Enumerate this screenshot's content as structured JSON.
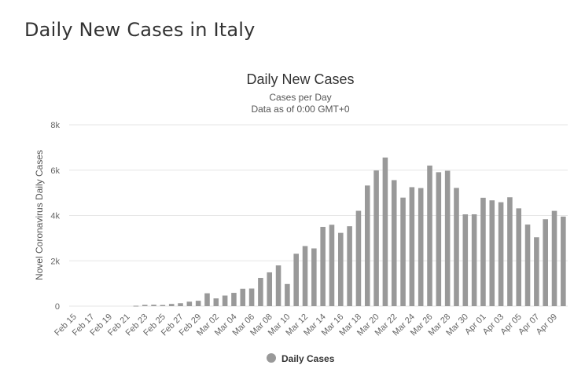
{
  "page": {
    "title": "Daily New Cases in Italy"
  },
  "chart_data": {
    "type": "bar",
    "title": "Daily New Cases",
    "subtitle_lines": [
      "Cases per Day",
      "Data as of 0:00 GMT+0"
    ],
    "xlabel": "",
    "ylabel": "Novel Coronavirus Daily Cases",
    "ylim": [
      0,
      8000
    ],
    "y_ticks": [
      0,
      2000,
      4000,
      6000,
      8000
    ],
    "y_tick_labels": [
      "0",
      "2k",
      "4k",
      "6k",
      "8k"
    ],
    "grid": true,
    "legend_position": "bottom-center",
    "color": "#999999",
    "categories": [
      "Feb 15",
      "Feb 16",
      "Feb 17",
      "Feb 18",
      "Feb 19",
      "Feb 20",
      "Feb 21",
      "Feb 22",
      "Feb 23",
      "Feb 24",
      "Feb 25",
      "Feb 26",
      "Feb 27",
      "Feb 28",
      "Feb 29",
      "Mar 01",
      "Mar 02",
      "Mar 03",
      "Mar 04",
      "Mar 05",
      "Mar 06",
      "Mar 07",
      "Mar 08",
      "Mar 09",
      "Mar 10",
      "Mar 11",
      "Mar 12",
      "Mar 13",
      "Mar 14",
      "Mar 15",
      "Mar 16",
      "Mar 17",
      "Mar 18",
      "Mar 19",
      "Mar 20",
      "Mar 21",
      "Mar 22",
      "Mar 23",
      "Mar 24",
      "Mar 25",
      "Mar 26",
      "Mar 27",
      "Mar 28",
      "Mar 29",
      "Mar 30",
      "Mar 31",
      "Apr 01",
      "Apr 02",
      "Apr 03",
      "Apr 04",
      "Apr 05",
      "Apr 06",
      "Apr 07",
      "Apr 08",
      "Apr 09",
      "Apr 10"
    ],
    "x_tick_labels": [
      "Feb 15",
      "Feb 17",
      "Feb 19",
      "Feb 21",
      "Feb 23",
      "Feb 25",
      "Feb 27",
      "Feb 29",
      "Mar 02",
      "Mar 04",
      "Mar 06",
      "Mar 08",
      "Mar 10",
      "Mar 12",
      "Mar 14",
      "Mar 16",
      "Mar 18",
      "Mar 20",
      "Mar 22",
      "Mar 24",
      "Mar 26",
      "Mar 28",
      "Mar 30",
      "Apr 01",
      "Apr 03",
      "Apr 05",
      "Apr 07",
      "Apr 09"
    ],
    "series": [
      {
        "name": "Daily Cases",
        "values": [
          0,
          0,
          0,
          0,
          0,
          0,
          0,
          18,
          57,
          62,
          51,
          97,
          130,
          198,
          238,
          568,
          342,
          467,
          587,
          769,
          778,
          1247,
          1491,
          1797,
          977,
          2313,
          2651,
          2547,
          3497,
          3590,
          3233,
          3526,
          4207,
          5322,
          5986,
          6557,
          5560,
          4789,
          5249,
          5210,
          6203,
          5909,
          5974,
          5217,
          4050,
          4053,
          4782,
          4668,
          4585,
          4805,
          4316,
          3599,
          3039,
          3836,
          4204,
          3951
        ]
      }
    ]
  }
}
